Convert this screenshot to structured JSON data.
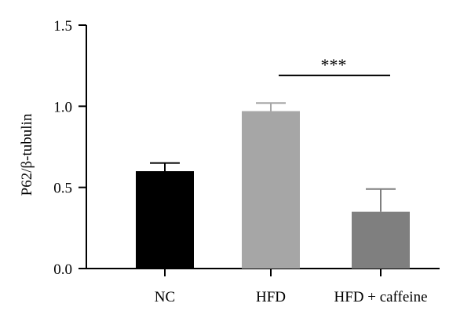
{
  "chart_data": {
    "type": "bar",
    "title": "",
    "xlabel": "",
    "ylabel": "P62/β-tubulin",
    "ylim": [
      0,
      1.5
    ],
    "yticks": [
      0.0,
      0.5,
      1.0,
      1.5
    ],
    "ytick_labels": [
      "0.0",
      "0.5",
      "1.0",
      "1.5"
    ],
    "categories": [
      "NC",
      "HFD",
      "HFD + caffeine"
    ],
    "values": [
      0.6,
      0.97,
      0.35
    ],
    "errors": [
      0.05,
      0.05,
      0.14
    ],
    "colors": [
      "#000000",
      "#a6a6a6",
      "#7f7f7f"
    ],
    "error_bar_colors": [
      "#000000",
      "#a6a6a6",
      "#7f7f7f"
    ],
    "grid": false,
    "legend": "none",
    "significance": {
      "from_category": "HFD",
      "to_category": "HFD + caffeine",
      "label": "***",
      "y": 1.19
    }
  }
}
